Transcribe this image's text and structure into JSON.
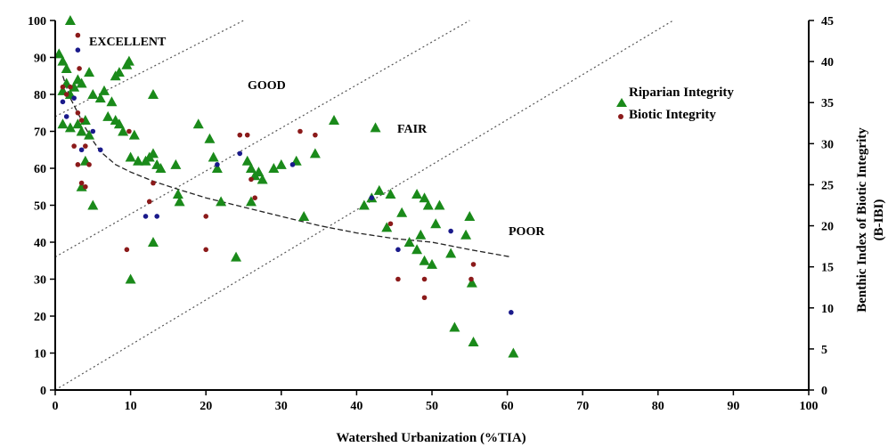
{
  "chart_data": {
    "type": "scatter",
    "xlabel": "Watershed Urbanization (%TIA)",
    "ylabel": "",
    "y2label_line1": "Benthic Index of Biotic Integrity",
    "y2label_line2": "(B-IBI)",
    "xlim": [
      0,
      100
    ],
    "ylim": [
      0,
      100
    ],
    "y2lim": [
      0,
      45
    ],
    "x_ticks": [
      0,
      10,
      20,
      30,
      40,
      50,
      60,
      70,
      80,
      90,
      100
    ],
    "y_ticks": [
      0,
      10,
      20,
      30,
      40,
      50,
      60,
      70,
      80,
      90,
      100
    ],
    "y2_ticks": [
      0,
      5,
      10,
      15,
      20,
      25,
      30,
      35,
      40,
      45
    ],
    "grid": false,
    "legend_position": "right",
    "zones": [
      "EXCELLENT",
      "GOOD",
      "FAIR",
      "POOR"
    ],
    "zone_boundaries": [
      {
        "x": [
          0,
          25
        ],
        "y": [
          74,
          100
        ]
      },
      {
        "x": [
          0,
          55
        ],
        "y": [
          36,
          100
        ]
      },
      {
        "x": [
          0,
          82
        ],
        "y": [
          0,
          100
        ]
      }
    ],
    "trend_line": {
      "x": [
        1,
        2,
        3,
        4,
        5,
        6,
        8,
        10,
        13,
        16,
        20,
        25,
        30,
        35,
        40,
        45,
        50,
        55,
        60.5
      ],
      "y": [
        85,
        79,
        75,
        71,
        67.5,
        64.5,
        61,
        59,
        56.5,
        54.5,
        52,
        49.5,
        47,
        44.5,
        42.5,
        41,
        40,
        38,
        36
      ]
    },
    "series": [
      {
        "name": "Riparian Integrity",
        "marker": "triangle",
        "color": "#1a8a1a",
        "points": [
          [
            0.5,
            91
          ],
          [
            1,
            89
          ],
          [
            1.5,
            87
          ],
          [
            2,
            100
          ],
          [
            1,
            81
          ],
          [
            1.5,
            83
          ],
          [
            2,
            80
          ],
          [
            2.5,
            82
          ],
          [
            3,
            84
          ],
          [
            3.5,
            83
          ],
          [
            1,
            72
          ],
          [
            2,
            71
          ],
          [
            3,
            72
          ],
          [
            3.5,
            70
          ],
          [
            4,
            73
          ],
          [
            4.5,
            69
          ],
          [
            4,
            62
          ],
          [
            3.5,
            55
          ],
          [
            5,
            50
          ],
          [
            4.5,
            86
          ],
          [
            5,
            80
          ],
          [
            6,
            79
          ],
          [
            6.5,
            81
          ],
          [
            7,
            74
          ],
          [
            7.5,
            78
          ],
          [
            8,
            85
          ],
          [
            8.5,
            86
          ],
          [
            9.5,
            88
          ],
          [
            9.8,
            89
          ],
          [
            8,
            73
          ],
          [
            8.5,
            72
          ],
          [
            9,
            70
          ],
          [
            10.5,
            69
          ],
          [
            10,
            63
          ],
          [
            11,
            62
          ],
          [
            12,
            62
          ],
          [
            12.5,
            63
          ],
          [
            13,
            64
          ],
          [
            13.5,
            61
          ],
          [
            14,
            60
          ],
          [
            13,
            80
          ],
          [
            16,
            61
          ],
          [
            16.3,
            53
          ],
          [
            16.5,
            51
          ],
          [
            13,
            40
          ],
          [
            10,
            30
          ],
          [
            19,
            72
          ],
          [
            20.5,
            68
          ],
          [
            21,
            63
          ],
          [
            21.5,
            60
          ],
          [
            22,
            51
          ],
          [
            24,
            36
          ],
          [
            25.5,
            62
          ],
          [
            26,
            60
          ],
          [
            26.5,
            58
          ],
          [
            27,
            59
          ],
          [
            27.5,
            57
          ],
          [
            26,
            51
          ],
          [
            29,
            60
          ],
          [
            30,
            61
          ],
          [
            32,
            62
          ],
          [
            33,
            47
          ],
          [
            34.5,
            64
          ],
          [
            37,
            73
          ],
          [
            42.5,
            71
          ],
          [
            41,
            50
          ],
          [
            42,
            52
          ],
          [
            43,
            54
          ],
          [
            44,
            44
          ],
          [
            44.5,
            53
          ],
          [
            46,
            48
          ],
          [
            47,
            40
          ],
          [
            48,
            53
          ],
          [
            48.5,
            42
          ],
          [
            49,
            52
          ],
          [
            49.5,
            50
          ],
          [
            48,
            38
          ],
          [
            49,
            35
          ],
          [
            50,
            34
          ],
          [
            50.5,
            45
          ],
          [
            51,
            50
          ],
          [
            52.5,
            37
          ],
          [
            53,
            17
          ],
          [
            54.5,
            42
          ],
          [
            55,
            47
          ],
          [
            55.3,
            29
          ],
          [
            55.5,
            13
          ],
          [
            60.8,
            10
          ]
        ]
      },
      {
        "name": "Biotic Integrity",
        "marker": "dot",
        "color_outer": "#8b1a1a",
        "color_inner": "#1a1a8b",
        "points": [
          [
            3,
            96
          ],
          [
            3,
            92
          ],
          [
            3.2,
            87
          ],
          [
            1,
            82
          ],
          [
            1,
            78
          ],
          [
            1.5,
            80
          ],
          [
            2,
            82
          ],
          [
            2.5,
            79
          ],
          [
            3,
            75
          ],
          [
            3.5,
            73
          ],
          [
            1.5,
            74
          ],
          [
            2.5,
            66
          ],
          [
            3,
            61
          ],
          [
            3.5,
            65
          ],
          [
            4,
            66
          ],
          [
            4.5,
            61
          ],
          [
            5,
            70
          ],
          [
            3.5,
            56
          ],
          [
            4,
            55
          ],
          [
            6,
            65
          ],
          [
            9.8,
            70
          ],
          [
            9.5,
            38
          ],
          [
            12,
            47
          ],
          [
            12.5,
            51
          ],
          [
            13,
            56
          ],
          [
            13.5,
            47
          ],
          [
            20,
            47
          ],
          [
            20,
            38
          ],
          [
            21.5,
            61
          ],
          [
            24.5,
            69
          ],
          [
            25.5,
            69
          ],
          [
            24.5,
            64
          ],
          [
            26,
            57
          ],
          [
            26.5,
            52
          ],
          [
            31.5,
            61
          ],
          [
            32.5,
            70
          ],
          [
            34.5,
            69
          ],
          [
            42,
            52
          ],
          [
            44.5,
            45
          ],
          [
            45.5,
            30
          ],
          [
            45.5,
            38
          ],
          [
            49,
            25
          ],
          [
            49,
            30
          ],
          [
            52.5,
            43
          ],
          [
            55.2,
            30
          ],
          [
            55.5,
            34
          ],
          [
            60.5,
            21
          ]
        ]
      }
    ]
  }
}
